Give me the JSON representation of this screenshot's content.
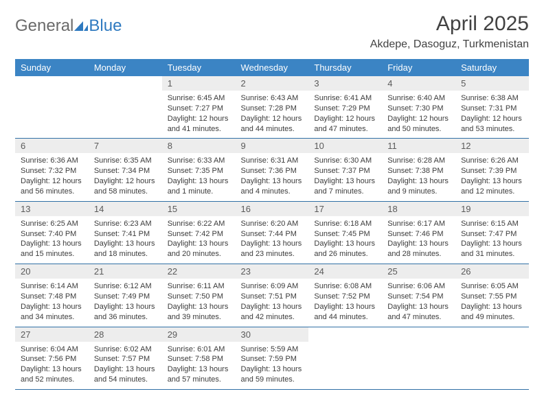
{
  "logo": {
    "part1": "General",
    "part2": "Blue"
  },
  "title": "April 2025",
  "subtitle": "Akdepe, Dasoguz, Turkmenistan",
  "colors": {
    "header_bg": "#3b84c4",
    "header_text": "#ffffff",
    "daynum_bg": "#ededed",
    "border": "#2f6fa5",
    "logo_gray": "#6a6a6a",
    "logo_blue": "#2f7ac0"
  },
  "day_headers": [
    "Sunday",
    "Monday",
    "Tuesday",
    "Wednesday",
    "Thursday",
    "Friday",
    "Saturday"
  ],
  "weeks": [
    [
      null,
      null,
      {
        "n": "1",
        "sr": "Sunrise: 6:45 AM",
        "ss": "Sunset: 7:27 PM",
        "dl": "Daylight: 12 hours and 41 minutes."
      },
      {
        "n": "2",
        "sr": "Sunrise: 6:43 AM",
        "ss": "Sunset: 7:28 PM",
        "dl": "Daylight: 12 hours and 44 minutes."
      },
      {
        "n": "3",
        "sr": "Sunrise: 6:41 AM",
        "ss": "Sunset: 7:29 PM",
        "dl": "Daylight: 12 hours and 47 minutes."
      },
      {
        "n": "4",
        "sr": "Sunrise: 6:40 AM",
        "ss": "Sunset: 7:30 PM",
        "dl": "Daylight: 12 hours and 50 minutes."
      },
      {
        "n": "5",
        "sr": "Sunrise: 6:38 AM",
        "ss": "Sunset: 7:31 PM",
        "dl": "Daylight: 12 hours and 53 minutes."
      }
    ],
    [
      {
        "n": "6",
        "sr": "Sunrise: 6:36 AM",
        "ss": "Sunset: 7:32 PM",
        "dl": "Daylight: 12 hours and 56 minutes."
      },
      {
        "n": "7",
        "sr": "Sunrise: 6:35 AM",
        "ss": "Sunset: 7:34 PM",
        "dl": "Daylight: 12 hours and 58 minutes."
      },
      {
        "n": "8",
        "sr": "Sunrise: 6:33 AM",
        "ss": "Sunset: 7:35 PM",
        "dl": "Daylight: 13 hours and 1 minute."
      },
      {
        "n": "9",
        "sr": "Sunrise: 6:31 AM",
        "ss": "Sunset: 7:36 PM",
        "dl": "Daylight: 13 hours and 4 minutes."
      },
      {
        "n": "10",
        "sr": "Sunrise: 6:30 AM",
        "ss": "Sunset: 7:37 PM",
        "dl": "Daylight: 13 hours and 7 minutes."
      },
      {
        "n": "11",
        "sr": "Sunrise: 6:28 AM",
        "ss": "Sunset: 7:38 PM",
        "dl": "Daylight: 13 hours and 9 minutes."
      },
      {
        "n": "12",
        "sr": "Sunrise: 6:26 AM",
        "ss": "Sunset: 7:39 PM",
        "dl": "Daylight: 13 hours and 12 minutes."
      }
    ],
    [
      {
        "n": "13",
        "sr": "Sunrise: 6:25 AM",
        "ss": "Sunset: 7:40 PM",
        "dl": "Daylight: 13 hours and 15 minutes."
      },
      {
        "n": "14",
        "sr": "Sunrise: 6:23 AM",
        "ss": "Sunset: 7:41 PM",
        "dl": "Daylight: 13 hours and 18 minutes."
      },
      {
        "n": "15",
        "sr": "Sunrise: 6:22 AM",
        "ss": "Sunset: 7:42 PM",
        "dl": "Daylight: 13 hours and 20 minutes."
      },
      {
        "n": "16",
        "sr": "Sunrise: 6:20 AM",
        "ss": "Sunset: 7:44 PM",
        "dl": "Daylight: 13 hours and 23 minutes."
      },
      {
        "n": "17",
        "sr": "Sunrise: 6:18 AM",
        "ss": "Sunset: 7:45 PM",
        "dl": "Daylight: 13 hours and 26 minutes."
      },
      {
        "n": "18",
        "sr": "Sunrise: 6:17 AM",
        "ss": "Sunset: 7:46 PM",
        "dl": "Daylight: 13 hours and 28 minutes."
      },
      {
        "n": "19",
        "sr": "Sunrise: 6:15 AM",
        "ss": "Sunset: 7:47 PM",
        "dl": "Daylight: 13 hours and 31 minutes."
      }
    ],
    [
      {
        "n": "20",
        "sr": "Sunrise: 6:14 AM",
        "ss": "Sunset: 7:48 PM",
        "dl": "Daylight: 13 hours and 34 minutes."
      },
      {
        "n": "21",
        "sr": "Sunrise: 6:12 AM",
        "ss": "Sunset: 7:49 PM",
        "dl": "Daylight: 13 hours and 36 minutes."
      },
      {
        "n": "22",
        "sr": "Sunrise: 6:11 AM",
        "ss": "Sunset: 7:50 PM",
        "dl": "Daylight: 13 hours and 39 minutes."
      },
      {
        "n": "23",
        "sr": "Sunrise: 6:09 AM",
        "ss": "Sunset: 7:51 PM",
        "dl": "Daylight: 13 hours and 42 minutes."
      },
      {
        "n": "24",
        "sr": "Sunrise: 6:08 AM",
        "ss": "Sunset: 7:52 PM",
        "dl": "Daylight: 13 hours and 44 minutes."
      },
      {
        "n": "25",
        "sr": "Sunrise: 6:06 AM",
        "ss": "Sunset: 7:54 PM",
        "dl": "Daylight: 13 hours and 47 minutes."
      },
      {
        "n": "26",
        "sr": "Sunrise: 6:05 AM",
        "ss": "Sunset: 7:55 PM",
        "dl": "Daylight: 13 hours and 49 minutes."
      }
    ],
    [
      {
        "n": "27",
        "sr": "Sunrise: 6:04 AM",
        "ss": "Sunset: 7:56 PM",
        "dl": "Daylight: 13 hours and 52 minutes."
      },
      {
        "n": "28",
        "sr": "Sunrise: 6:02 AM",
        "ss": "Sunset: 7:57 PM",
        "dl": "Daylight: 13 hours and 54 minutes."
      },
      {
        "n": "29",
        "sr": "Sunrise: 6:01 AM",
        "ss": "Sunset: 7:58 PM",
        "dl": "Daylight: 13 hours and 57 minutes."
      },
      {
        "n": "30",
        "sr": "Sunrise: 5:59 AM",
        "ss": "Sunset: 7:59 PM",
        "dl": "Daylight: 13 hours and 59 minutes."
      },
      null,
      null,
      null
    ]
  ]
}
